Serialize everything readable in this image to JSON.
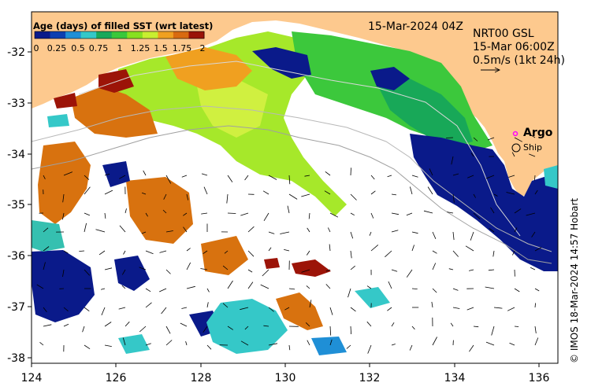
{
  "map": {
    "timestamp": "15-Mar-2024 04Z",
    "colorbar": {
      "title": "Age (days) of filled SST (wrt latest)",
      "labels": [
        "0",
        "0.25",
        "0.5",
        "0.75",
        "1",
        "1.25",
        "1.5",
        "1.75",
        "2"
      ],
      "colors": [
        "#0a1a8a",
        "#0d3fb0",
        "#1f8fd6",
        "#35c8c8",
        "#19a85a",
        "#39c83a",
        "#88e020",
        "#c8ee30",
        "#f0a020",
        "#d86a10",
        "#9a1408"
      ]
    },
    "legend": {
      "product": "NRT00 GSL",
      "date": "15-Mar 06:00Z",
      "scale": "0.5m/s (1kt 24h)",
      "argo": "Argo",
      "ship": "Ship"
    },
    "credit": "© IMOS 18-Mar-2024 14:57 Hobart",
    "x_ticks": [
      "124",
      "126",
      "128",
      "130",
      "132",
      "134",
      "136"
    ],
    "y_ticks": [
      "-32",
      "-33",
      "-34",
      "-35",
      "-36",
      "-37",
      "-38"
    ],
    "colors": {
      "land": "#fdc98e",
      "ocean": "#ffffff"
    }
  }
}
